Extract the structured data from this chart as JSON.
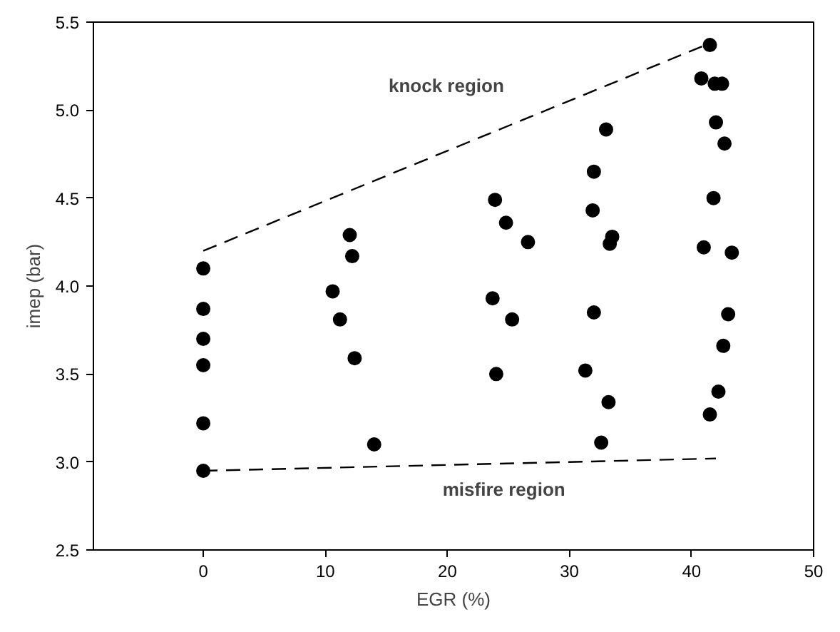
{
  "chart_data": {
    "type": "scatter",
    "xlabel": "EGR (%)",
    "ylabel": "imep (bar)",
    "xlim": [
      -9,
      50
    ],
    "ylim": [
      2.5,
      5.5
    ],
    "xticks": [
      0,
      10,
      20,
      30,
      40,
      50
    ],
    "yticks": [
      2.5,
      {
        "value": 3,
        "label": "3.0"
      },
      3.5,
      {
        "value": 4,
        "label": "4.0"
      },
      4.5,
      {
        "value": 5,
        "label": "5.0"
      },
      5.5
    ],
    "grid": false,
    "series": [
      {
        "marker": "circle",
        "color": "#000000",
        "x": [
          0,
          0,
          0,
          0,
          0,
          0,
          10.6,
          11.2,
          12,
          12.2,
          12.4,
          14,
          23.7,
          23.9,
          24,
          24.8,
          25.3,
          26.6,
          31.3,
          31.9,
          32,
          32,
          32.6,
          33,
          33.2,
          33.3,
          33.5,
          40.8,
          41,
          41.5,
          41.5,
          41.8,
          42,
          41.9,
          42.2,
          42.5,
          42.6,
          42.7,
          43,
          43.3
        ],
        "values": [
          4.1,
          3.87,
          3.7,
          3.55,
          3.22,
          2.95,
          3.97,
          3.81,
          4.29,
          4.17,
          3.59,
          3.1,
          3.93,
          4.49,
          3.5,
          4.36,
          3.81,
          4.25,
          3.52,
          4.43,
          4.65,
          3.85,
          3.11,
          4.89,
          3.34,
          4.24,
          4.28,
          5.18,
          4.22,
          5.37,
          3.27,
          4.5,
          4.93,
          5.15,
          3.4,
          5.15,
          3.66,
          4.81,
          3.84,
          4.19
        ]
      },
      {
        "type": "line",
        "line_style": "dashed",
        "color": "#000000",
        "x": [
          0,
          41.5
        ],
        "values": [
          4.2,
          5.38
        ]
      },
      {
        "type": "line",
        "line_style": "dashed",
        "color": "#000000",
        "x": [
          0,
          42
        ],
        "values": [
          2.95,
          3.02
        ]
      }
    ],
    "annotations": [
      "knock region",
      "misfire region"
    ]
  }
}
